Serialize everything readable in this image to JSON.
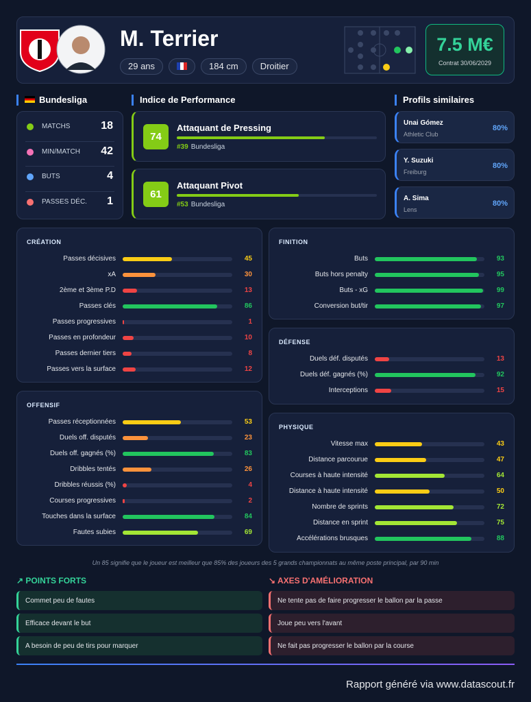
{
  "header": {
    "name": "M. Terrier",
    "tags": [
      "29 ans",
      "184 cm",
      "Droitier"
    ],
    "market_value": "7.5 M€",
    "contract": "Contrat 30/06/2029"
  },
  "league": {
    "title": "Bundesliga",
    "stats": [
      {
        "label": "MATCHS",
        "value": 18
      },
      {
        "label": "MIN/MATCH",
        "value": 42
      },
      {
        "label": "BUTS",
        "value": 4
      },
      {
        "label": "PASSES DÉC.",
        "value": 1
      }
    ]
  },
  "performance": {
    "title": "Indice de Performance",
    "profiles": [
      {
        "score": 74,
        "role": "Attaquant de Pressing",
        "rank": "#39",
        "league": "Bundesliga"
      },
      {
        "score": 61,
        "role": "Attaquant Pivot",
        "rank": "#53",
        "league": "Bundesliga"
      }
    ]
  },
  "similar": {
    "title": "Profils similaires",
    "players": [
      {
        "name": "Unai Gómez",
        "club": "Athletic Club",
        "similarity": "80%"
      },
      {
        "name": "Y. Suzuki",
        "club": "Freiburg",
        "similarity": "80%"
      },
      {
        "name": "A. Sima",
        "club": "Lens",
        "similarity": "80%"
      }
    ]
  },
  "sections": [
    {
      "title": "CRÉATION",
      "rows": [
        {
          "label": "Passes décisives",
          "value": 45
        },
        {
          "label": "xA",
          "value": 30
        },
        {
          "label": "2ème et 3ème P.D",
          "value": 13
        },
        {
          "label": "Passes clés",
          "value": 86
        },
        {
          "label": "Passes progressives",
          "value": 1
        },
        {
          "label": "Passes en profondeur",
          "value": 10
        },
        {
          "label": "Passes dernier tiers",
          "value": 8
        },
        {
          "label": "Passes vers la surface",
          "value": 12
        }
      ]
    },
    {
      "title": "OFFENSIF",
      "rows": [
        {
          "label": "Passes réceptionnées",
          "value": 53
        },
        {
          "label": "Duels off. disputés",
          "value": 23
        },
        {
          "label": "Duels off. gagnés (%)",
          "value": 83
        },
        {
          "label": "Dribbles tentés",
          "value": 26
        },
        {
          "label": "Dribbles réussis (%)",
          "value": 4
        },
        {
          "label": "Courses progressives",
          "value": 2
        },
        {
          "label": "Touches dans la surface",
          "value": 84
        },
        {
          "label": "Fautes subies",
          "value": 69
        }
      ]
    },
    {
      "title": "FINITION",
      "rows": [
        {
          "label": "Buts",
          "value": 93
        },
        {
          "label": "Buts hors penalty",
          "value": 95
        },
        {
          "label": "Buts - xG",
          "value": 99
        },
        {
          "label": "Conversion but/tir",
          "value": 97
        }
      ]
    },
    {
      "title": "DÉFENSE",
      "rows": [
        {
          "label": "Duels déf. disputés",
          "value": 13
        },
        {
          "label": "Duels déf. gagnés (%)",
          "value": 92
        },
        {
          "label": "Interceptions",
          "value": 15
        }
      ]
    },
    {
      "title": "PHYSIQUE",
      "rows": [
        {
          "label": "Vitesse max",
          "value": 43
        },
        {
          "label": "Distance parcourue",
          "value": 47
        },
        {
          "label": "Courses à haute intensité",
          "value": 64
        },
        {
          "label": "Distance à haute intensité",
          "value": 50
        },
        {
          "label": "Nombre de sprints",
          "value": 72
        },
        {
          "label": "Distance en sprint",
          "value": 75
        },
        {
          "label": "Accélérations brusques",
          "value": 88
        }
      ]
    }
  ],
  "footnote": "Un 85 signifie que le joueur est meilleur que 85% des joueurs des 5 grands championnats au même poste principal, par 90 min",
  "strengths": {
    "title": "POINTS FORTS",
    "items": [
      "Commet peu de fautes",
      "Efficace devant le but",
      "A besoin de peu de tirs pour marquer"
    ]
  },
  "improvements": {
    "title": "AXES D'AMÉLIORATION",
    "items": [
      "Ne tente pas de faire progresser le ballon par la passe",
      "Joue peu vers l'avant",
      "Ne fait pas progresser le ballon par la course"
    ]
  },
  "footer": "Rapport généré via www.datascout.fr"
}
